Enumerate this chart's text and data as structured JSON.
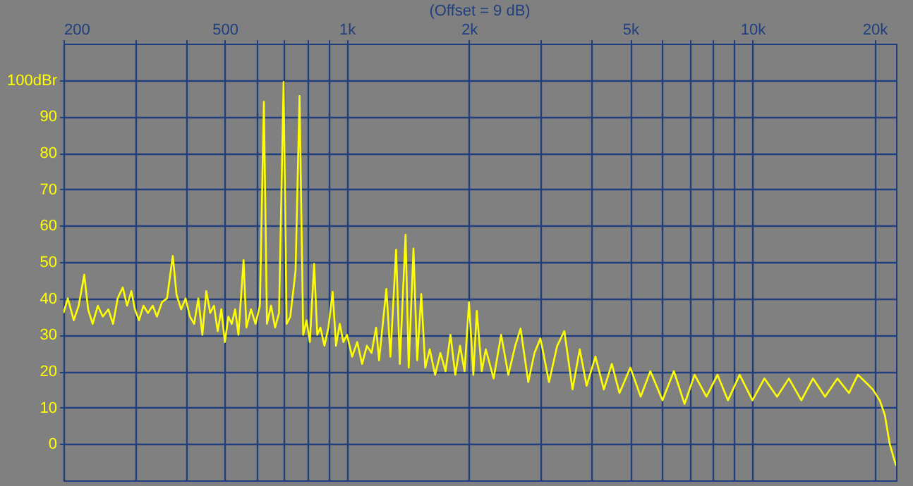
{
  "chart_data": {
    "type": "line",
    "title": "(Offset = 9 dB)",
    "x": [
      200,
      205,
      212,
      218,
      225,
      230,
      236,
      243,
      250,
      258,
      265,
      272,
      280,
      287,
      294,
      300,
      307,
      315,
      323,
      332,
      340,
      350,
      360,
      372,
      380,
      390,
      400,
      410,
      420,
      430,
      440,
      450,
      460,
      470,
      480,
      490,
      500,
      510,
      520,
      530,
      540,
      556,
      565,
      580,
      595,
      610,
      624,
      635,
      650,
      665,
      680,
      698,
      710,
      725,
      747,
      764,
      780,
      795,
      810,
      830,
      845,
      860,
      880,
      900,
      922,
      940,
      960,
      980,
      1000,
      1030,
      1060,
      1090,
      1120,
      1150,
      1180,
      1200,
      1251,
      1280,
      1322,
      1350,
      1395,
      1420,
      1459,
      1490,
      1525,
      1560,
      1600,
      1650,
      1700,
      1750,
      1800,
      1850,
      1900,
      1950,
      2000,
      2050,
      2090,
      2150,
      2200,
      2300,
      2400,
      2500,
      2600,
      2680,
      2800,
      2900,
      3000,
      3150,
      3300,
      3436,
      3600,
      3750,
      3900,
      4100,
      4300,
      4500,
      4700,
      5000,
      5300,
      5600,
      6000,
      6400,
      6800,
      7200,
      7700,
      8200,
      8700,
      9300,
      10000,
      10700,
      11500,
      12300,
      13200,
      14100,
      15100,
      16200,
      17300,
      18200,
      19000,
      19800,
      20600,
      21200,
      21800,
      22600
    ],
    "series": [
      {
        "color": "#ffff00",
        "values": [
          36,
          40,
          34,
          38,
          46.5,
          37,
          33,
          38,
          35,
          37,
          33,
          40,
          43,
          38,
          42,
          37,
          34,
          38,
          36,
          38,
          35,
          39,
          40,
          51.7,
          41,
          37,
          40,
          35,
          33,
          40,
          30,
          42,
          36,
          38,
          31,
          37,
          28,
          35,
          33,
          37,
          30,
          50.5,
          32,
          37,
          33,
          38,
          94,
          33,
          38,
          32,
          36,
          99.5,
          33,
          35,
          47.7,
          95.6,
          30,
          34,
          28,
          49.5,
          30,
          32,
          27,
          32,
          41.8,
          27,
          33,
          28,
          30,
          24,
          28,
          22,
          27,
          25,
          32,
          23,
          42.6,
          24,
          53.4,
          22,
          57.5,
          21,
          53.7,
          23,
          41.2,
          21,
          26,
          19,
          25,
          20,
          30,
          19,
          27,
          20,
          39,
          19,
          36.6,
          20,
          26,
          18,
          30,
          19,
          27,
          31.7,
          17,
          25,
          29,
          17,
          27,
          31,
          15,
          26,
          16,
          24,
          15,
          22,
          14,
          21,
          13,
          20,
          12,
          20,
          11,
          19,
          13,
          19,
          12,
          19,
          12,
          18,
          13,
          18,
          12,
          18,
          13,
          18,
          14,
          19,
          17,
          15,
          12,
          8,
          0,
          -6
        ]
      }
    ],
    "log": "x",
    "xlim": [
      200,
      22600
    ],
    "xticks": [
      {
        "value": 200,
        "label": "200"
      },
      {
        "value": 300,
        "label": null
      },
      {
        "value": 400,
        "label": null
      },
      {
        "value": 500,
        "label": "500"
      },
      {
        "value": 600,
        "label": null
      },
      {
        "value": 700,
        "label": null
      },
      {
        "value": 800,
        "label": null
      },
      {
        "value": 900,
        "label": null
      },
      {
        "value": 1000,
        "label": "1k"
      },
      {
        "value": 2000,
        "label": "2k"
      },
      {
        "value": 3000,
        "label": null
      },
      {
        "value": 4000,
        "label": null
      },
      {
        "value": 5000,
        "label": "5k"
      },
      {
        "value": 6000,
        "label": null
      },
      {
        "value": 7000,
        "label": null
      },
      {
        "value": 8000,
        "label": null
      },
      {
        "value": 9000,
        "label": null
      },
      {
        "value": 10000,
        "label": "10k"
      },
      {
        "value": 20000,
        "label": "20k"
      }
    ],
    "ylim": [
      -10,
      110
    ],
    "yticks": [
      0,
      10,
      20,
      30,
      40,
      50,
      60,
      70,
      80,
      90,
      {
        "value": 100,
        "label": "100dBr"
      }
    ],
    "grid": true
  }
}
